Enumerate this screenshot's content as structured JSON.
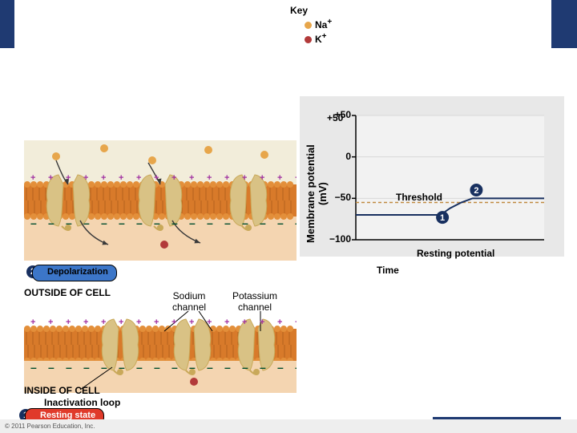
{
  "header": {
    "bar_color": "#1f3a72"
  },
  "key": {
    "title": "Key",
    "na": {
      "label": "Na",
      "sup": "+",
      "color": "#e7a64b"
    },
    "k": {
      "label": "K",
      "sup": "+",
      "color": "#b23a3a"
    }
  },
  "membrane": {
    "outside_bg": "#f2edda",
    "inside_bg": "#f4d5b1",
    "lipid_head": "#e38f3a",
    "lipid_tail": "#d87a2a",
    "plus_color": "#a030a0",
    "minus_color": "#004e2e",
    "sodium_channel_label": "Sodium\nchannel",
    "potassium_channel_label": "Potassium\nchannel",
    "outside_label": "OUTSIDE OF CELL",
    "inside_label": "INSIDE OF CELL",
    "inact_label": "Inactivation loop",
    "protein_outer": "#d9c285",
    "protein_inner": "#c9a95a",
    "na_color": "#e7a64b",
    "k_color": "#b23a3a",
    "arrow_color": "#3a3a3a"
  },
  "states": {
    "s1": {
      "num": "1",
      "label": "Resting state",
      "bg": "#e03a2a",
      "text": "#ffffff",
      "circle": "#183060"
    },
    "s2": {
      "num": "2",
      "label": "Depolarization",
      "bg": "#3c76c8",
      "text": "#000000",
      "circle": "#183060"
    }
  },
  "chart": {
    "bg": "#e8e8e8",
    "plot_bg": "#f2f2f2",
    "axis_color": "#000000",
    "grid_color": "#d8d8d8",
    "ylabel": "Membrane potential\n(mV)",
    "xlabel": "Time",
    "threshold_label": "Threshold",
    "resting_label": "Resting potential",
    "ylim": [
      -100,
      50
    ],
    "yticks": [
      {
        "v": 50,
        "label": "+50"
      },
      {
        "v": 0,
        "label": "0"
      },
      {
        "v": -50,
        "label": "−50"
      },
      {
        "v": -100,
        "label": "−100"
      }
    ],
    "threshold_y": -55,
    "threshold_color": "#c08a40",
    "resting_y": -70,
    "trace_color": "#183060",
    "trace_points": [
      [
        0,
        -70
      ],
      [
        0.45,
        -70
      ],
      [
        0.5,
        -62
      ],
      [
        0.56,
        -55
      ],
      [
        0.62,
        -50
      ],
      [
        0.76,
        -50
      ],
      [
        1.0,
        -50
      ]
    ],
    "markers": {
      "m1": {
        "num": "1",
        "x": 0.46,
        "y": -73,
        "color": "#183060"
      },
      "m2": {
        "num": "2",
        "x": 0.64,
        "y": -40,
        "color": "#183060"
      }
    }
  },
  "footer": {
    "text": "© 2011 Pearson Education, Inc."
  }
}
